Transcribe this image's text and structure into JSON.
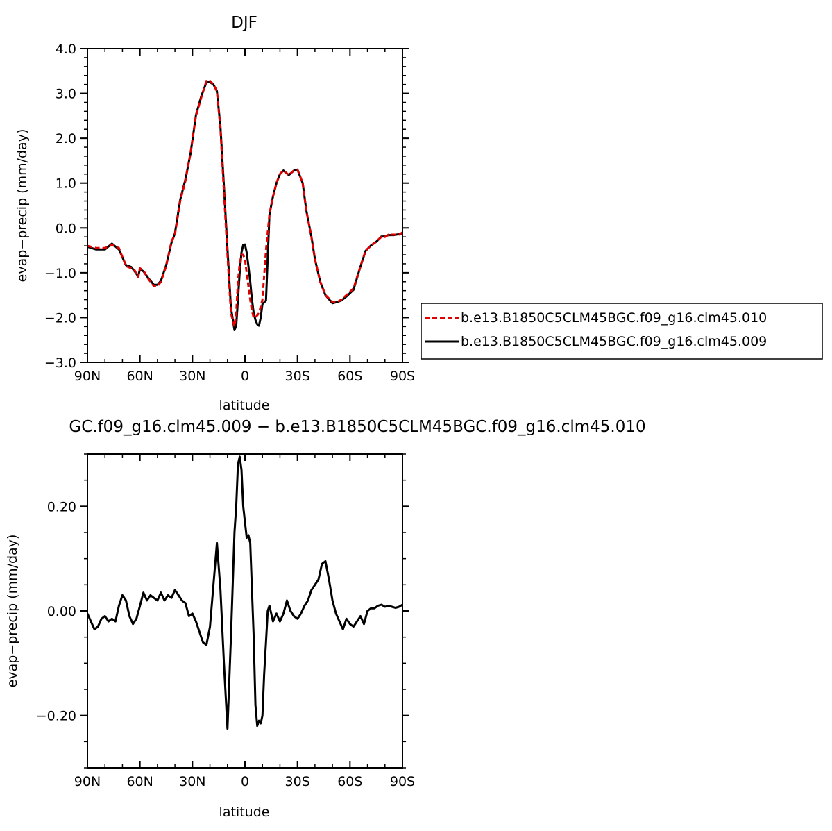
{
  "chart_data": [
    {
      "type": "line",
      "title": "DJF",
      "xlabel": "latitude",
      "ylabel": "evap−precip (mm/day)",
      "x_ticks": [
        {
          "value": 90,
          "label": "90N"
        },
        {
          "value": 60,
          "label": "60N"
        },
        {
          "value": 30,
          "label": "30N"
        },
        {
          "value": 0,
          "label": "0"
        },
        {
          "value": -30,
          "label": "30S"
        },
        {
          "value": -60,
          "label": "60S"
        },
        {
          "value": -90,
          "label": "90S"
        }
      ],
      "y_ticks": [
        {
          "value": 4,
          "label": "4.0"
        },
        {
          "value": 3,
          "label": "3.0"
        },
        {
          "value": 2,
          "label": "2.0"
        },
        {
          "value": 1,
          "label": "1.0"
        },
        {
          "value": 0,
          "label": "0.0"
        },
        {
          "value": -1,
          "label": "−1.0"
        },
        {
          "value": -2,
          "label": "−2.0"
        },
        {
          "value": -3,
          "label": "−3.0"
        }
      ],
      "xlim": [
        90,
        -90
      ],
      "ylim": [
        -3,
        4
      ],
      "grid": false,
      "legend_position": "outside-right",
      "series": [
        {
          "name": "b.e13.B1850C5CLM45BGC.f09_g16.clm45.010",
          "color": "#e00000",
          "dash": "dashed",
          "x": [
            90,
            85,
            80,
            76,
            72,
            68,
            65,
            63,
            61,
            60,
            58,
            55,
            52,
            50,
            48,
            45,
            42,
            40,
            37,
            34,
            31,
            28,
            25,
            22,
            20,
            18,
            16,
            14,
            12,
            10,
            8,
            6,
            5,
            4,
            3,
            2,
            1,
            0,
            -1,
            -2,
            -3,
            -4,
            -5,
            -6,
            -7,
            -8,
            -9,
            -10,
            -12,
            -14,
            -16,
            -18,
            -20,
            -22,
            -25,
            -28,
            -30,
            -33,
            -35,
            -38,
            -40,
            -43,
            -46,
            -50,
            -53,
            -55,
            -58,
            -62,
            -66,
            -69,
            -72,
            -75,
            -78,
            -80,
            -82,
            -85,
            -88,
            -90
          ],
          "y": [
            -0.4,
            -0.45,
            -0.45,
            -0.38,
            -0.45,
            -0.85,
            -0.9,
            -0.95,
            -1.1,
            -0.9,
            -0.95,
            -1.15,
            -1.3,
            -1.3,
            -1.2,
            -0.85,
            -0.3,
            -0.15,
            0.6,
            1.05,
            1.7,
            2.5,
            2.9,
            3.28,
            3.28,
            3.2,
            3.05,
            2.2,
            0.8,
            -0.6,
            -1.9,
            -2.2,
            -1.9,
            -1.2,
            -0.8,
            -0.6,
            -0.6,
            -0.7,
            -1.0,
            -1.3,
            -1.6,
            -1.85,
            -2.0,
            -2.0,
            -1.95,
            -1.9,
            -1.75,
            -1.6,
            -0.5,
            0.3,
            0.7,
            1.0,
            1.2,
            1.28,
            1.18,
            1.28,
            1.3,
            1.0,
            0.4,
            -0.2,
            -0.7,
            -1.2,
            -1.5,
            -1.65,
            -1.65,
            -1.6,
            -1.5,
            -1.35,
            -0.85,
            -0.5,
            -0.4,
            -0.3,
            -0.2,
            -0.2,
            -0.15,
            -0.15,
            -0.15,
            -0.1
          ]
        },
        {
          "name": "b.e13.B1850C5CLM45BGC.f09_g16.clm45.009",
          "color": "#000000",
          "dash": "solid",
          "x": [
            90,
            85,
            80,
            76,
            72,
            68,
            65,
            63,
            61,
            60,
            58,
            55,
            52,
            50,
            48,
            45,
            42,
            40,
            37,
            34,
            31,
            28,
            25,
            22,
            20,
            18,
            16,
            14,
            12,
            10,
            8,
            6,
            5,
            4,
            3,
            2,
            1,
            0,
            -1,
            -2,
            -3,
            -4,
            -5,
            -6,
            -7,
            -8,
            -9,
            -10,
            -12,
            -14,
            -16,
            -18,
            -20,
            -22,
            -25,
            -28,
            -30,
            -33,
            -35,
            -38,
            -40,
            -43,
            -46,
            -50,
            -53,
            -55,
            -58,
            -62,
            -66,
            -69,
            -72,
            -75,
            -78,
            -80,
            -82,
            -85,
            -88,
            -90
          ],
          "y": [
            -0.42,
            -0.48,
            -0.48,
            -0.35,
            -0.48,
            -0.83,
            -0.87,
            -0.97,
            -1.08,
            -0.92,
            -0.97,
            -1.13,
            -1.27,
            -1.27,
            -1.18,
            -0.83,
            -0.33,
            -0.12,
            0.63,
            1.08,
            1.68,
            2.52,
            2.93,
            3.25,
            3.25,
            3.2,
            3.05,
            2.25,
            0.93,
            -0.47,
            -1.78,
            -2.28,
            -2.18,
            -1.6,
            -1.0,
            -0.55,
            -0.38,
            -0.37,
            -0.55,
            -0.85,
            -1.2,
            -1.6,
            -1.9,
            -2.05,
            -2.15,
            -2.18,
            -2.0,
            -1.7,
            -1.62,
            0.3,
            0.7,
            1.0,
            1.2,
            1.28,
            1.18,
            1.28,
            1.3,
            1.0,
            0.4,
            -0.2,
            -0.7,
            -1.2,
            -1.5,
            -1.68,
            -1.65,
            -1.62,
            -1.53,
            -1.38,
            -0.86,
            -0.51,
            -0.39,
            -0.31,
            -0.19,
            -0.19,
            -0.16,
            -0.16,
            -0.14,
            -0.12
          ]
        }
      ]
    },
    {
      "type": "line",
      "title": "GC.f09_g16.clm45.009 − b.e13.B1850C5CLM45BGC.f09_g16.clm45.010",
      "xlabel": "latitude",
      "ylabel": "evap−precip (mm/day)",
      "x_ticks": [
        {
          "value": 90,
          "label": "90N"
        },
        {
          "value": 60,
          "label": "60N"
        },
        {
          "value": 30,
          "label": "30N"
        },
        {
          "value": 0,
          "label": "0"
        },
        {
          "value": -30,
          "label": "30S"
        },
        {
          "value": -60,
          "label": "60S"
        },
        {
          "value": -90,
          "label": "90S"
        }
      ],
      "y_ticks": [
        {
          "value": 0.2,
          "label": "0.20"
        },
        {
          "value": 0,
          "label": "0.00"
        },
        {
          "value": -0.2,
          "label": "−0.20"
        }
      ],
      "xlim": [
        90,
        -90
      ],
      "ylim": [
        -0.3,
        0.3
      ],
      "grid": false,
      "series": [
        {
          "color": "#000000",
          "dash": "solid",
          "x": [
            90,
            88,
            86,
            84,
            82,
            80,
            78,
            76,
            74,
            72,
            70,
            68,
            66,
            64,
            62,
            60,
            58,
            56,
            54,
            52,
            50,
            48,
            46,
            44,
            42,
            40,
            38,
            36,
            34,
            32,
            30,
            28,
            26,
            24,
            22,
            20,
            18,
            16,
            14,
            12,
            10,
            8,
            6,
            5,
            4,
            3,
            2,
            1,
            0,
            -1,
            -2,
            -3,
            -4,
            -5,
            -6,
            -7,
            -8,
            -9,
            -10,
            -11,
            -12,
            -13,
            -14,
            -16,
            -18,
            -20,
            -22,
            -24,
            -26,
            -28,
            -30,
            -32,
            -34,
            -36,
            -38,
            -40,
            -42,
            -44,
            -46,
            -48,
            -50,
            -52,
            -54,
            -56,
            -58,
            -60,
            -62,
            -64,
            -66,
            -68,
            -70,
            -72,
            -74,
            -76,
            -78,
            -80,
            -82,
            -84,
            -86,
            -88,
            -90
          ],
          "y": [
            -0.005,
            -0.02,
            -0.035,
            -0.03,
            -0.015,
            -0.01,
            -0.02,
            -0.015,
            -0.02,
            0.01,
            0.03,
            0.02,
            -0.01,
            -0.025,
            -0.015,
            0.01,
            0.035,
            0.02,
            0.03,
            0.025,
            0.02,
            0.035,
            0.02,
            0.03,
            0.025,
            0.04,
            0.03,
            0.02,
            0.015,
            -0.01,
            -0.005,
            -0.02,
            -0.04,
            -0.06,
            -0.065,
            -0.03,
            0.05,
            0.13,
            0.04,
            -0.1,
            -0.225,
            -0.05,
            0.15,
            0.2,
            0.28,
            0.295,
            0.27,
            0.2,
            0.17,
            0.14,
            0.145,
            0.13,
            0.04,
            -0.05,
            -0.18,
            -0.22,
            -0.21,
            -0.215,
            -0.2,
            -0.12,
            -0.06,
            0.0,
            0.01,
            -0.02,
            -0.005,
            -0.02,
            -0.005,
            0.02,
            0.0,
            -0.01,
            -0.015,
            -0.005,
            0.01,
            0.02,
            0.04,
            0.05,
            0.06,
            0.09,
            0.095,
            0.06,
            0.02,
            -0.005,
            -0.02,
            -0.035,
            -0.015,
            -0.025,
            -0.03,
            -0.02,
            -0.01,
            -0.025,
            0.0,
            0.005,
            0.005,
            0.01,
            0.012,
            0.008,
            0.01,
            0.008,
            0.006,
            0.008,
            0.012
          ]
        }
      ]
    }
  ]
}
